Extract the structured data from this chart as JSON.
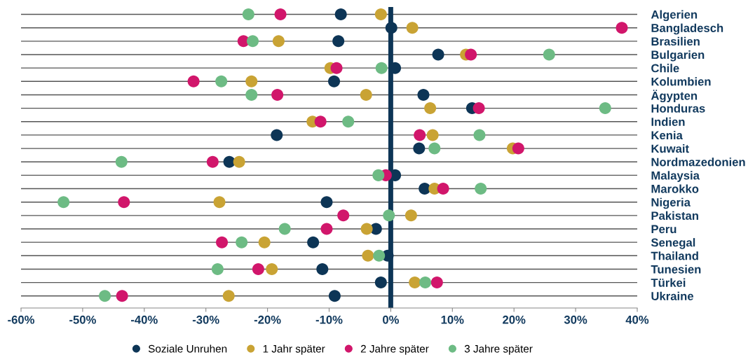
{
  "chart_data": {
    "type": "scatter",
    "orientation": "horizontal",
    "categories": [
      "Algerien",
      "Bangladesch",
      "Brasilien",
      "Bulgarien",
      "Chile",
      "Kolumbien",
      "Ägypten",
      "Honduras",
      "Indien",
      "Kenia",
      "Kuwait",
      "Nordmazedonien",
      "Malaysia",
      "Marokko",
      "Nigeria",
      "Pakistan",
      "Peru",
      "Senegal",
      "Thailand",
      "Tunesien",
      "Türkei",
      "Ukraine"
    ],
    "series": [
      {
        "name": "Soziale Unruhen",
        "color": "#0d3556",
        "values": [
          -8.1,
          0.1,
          -8.5,
          7.7,
          0.7,
          -9.2,
          5.3,
          13.2,
          null,
          -18.5,
          4.6,
          -26.2,
          0.7,
          5.5,
          -10.4,
          null,
          -2.4,
          -12.6,
          -0.5,
          -11.1,
          -1.6,
          -9.1
        ]
      },
      {
        "name": "1 Jahr später",
        "color": "#c9a334",
        "values": [
          -1.6,
          3.5,
          -18.2,
          12.2,
          -9.8,
          -22.6,
          -4.0,
          6.4,
          -12.7,
          6.8,
          19.8,
          -24.6,
          null,
          7.1,
          -27.8,
          3.3,
          -3.9,
          -20.5,
          -3.7,
          -19.3,
          3.9,
          -26.3
        ]
      },
      {
        "name": "2 Jahre später",
        "color": "#d1166b",
        "values": [
          -17.9,
          37.5,
          -23.9,
          13.0,
          -8.8,
          -32.0,
          -18.4,
          14.3,
          -11.4,
          4.7,
          20.7,
          -28.9,
          -0.8,
          8.5,
          -43.3,
          -7.7,
          -10.4,
          -27.4,
          null,
          -21.5,
          7.5,
          -43.6
        ]
      },
      {
        "name": "3 Jahre später",
        "color": "#6dbb84",
        "values": [
          -23.1,
          null,
          -22.4,
          25.7,
          -1.5,
          -27.5,
          -22.6,
          34.8,
          -6.9,
          14.4,
          7.1,
          -43.7,
          -2.0,
          14.6,
          -53.1,
          -0.3,
          -17.2,
          -24.2,
          -1.9,
          -28.1,
          5.6,
          -46.4
        ]
      }
    ],
    "xlim": [
      -60,
      40
    ],
    "xticks": [
      {
        "value": -60,
        "label": "-60%"
      },
      {
        "value": -50,
        "label": "-50%"
      },
      {
        "value": -40,
        "label": "-40%"
      },
      {
        "value": -30,
        "label": "-30%"
      },
      {
        "value": -20,
        "label": "-20%"
      },
      {
        "value": -10,
        "label": "-10%"
      },
      {
        "value": 0,
        "label": "0%"
      },
      {
        "value": 10,
        "label": "10%"
      },
      {
        "value": 20,
        "label": "20%"
      },
      {
        "value": 30,
        "label": "30%"
      },
      {
        "value": 40,
        "label": "40%"
      }
    ],
    "ref_lines": [
      {
        "axis": "x",
        "value": 0,
        "color": "#0d3556"
      }
    ],
    "grid": "y",
    "legend": "bottom",
    "marker": "circle"
  }
}
